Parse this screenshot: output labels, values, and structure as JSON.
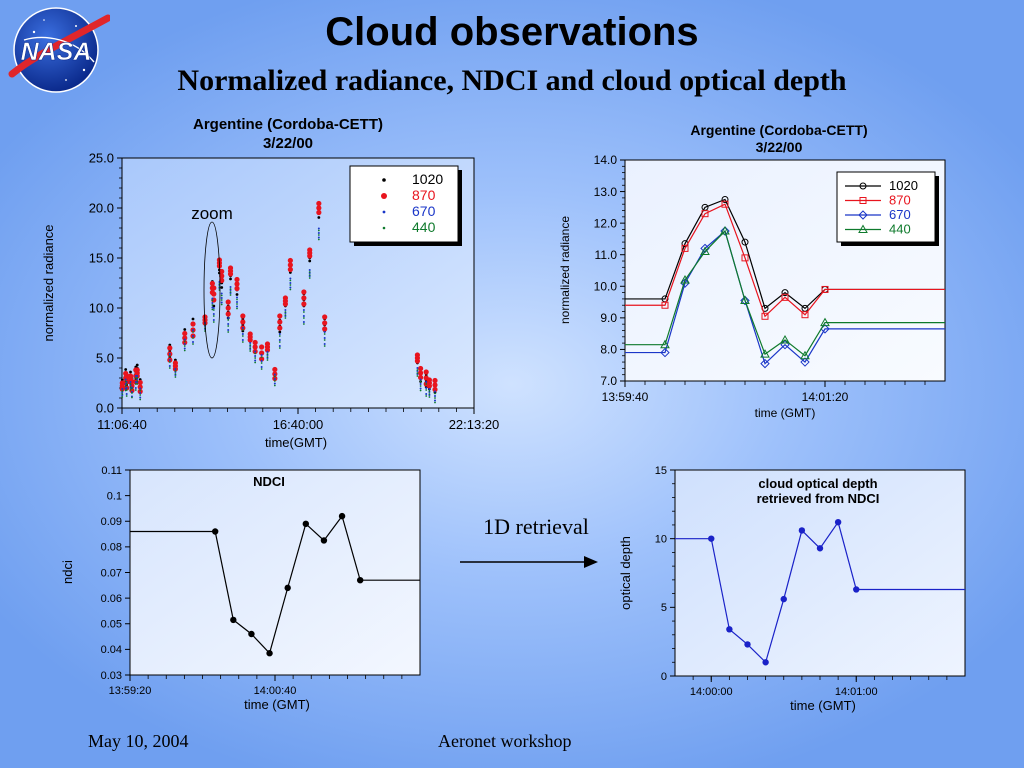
{
  "slide": {
    "title": "Cloud observations",
    "subtitle": "Normalized radiance, NDCI and cloud optical depth",
    "footer_left": "May 10, 2004",
    "footer_center": "Aeronet workshop",
    "logo_text": "NASA",
    "arrow_label": "1D retrieval"
  },
  "chart_data": [
    {
      "id": "radiance_full",
      "type": "scatter",
      "title": "Argentine (Cordoba-CETT)",
      "subtitle": "3/22/00",
      "xlabel": "time(GMT)",
      "ylabel": "normalized radiance",
      "xlim": [
        0,
        40000
      ],
      "ylim": [
        0,
        25
      ],
      "yticks": [
        0,
        5,
        10,
        15,
        20,
        25
      ],
      "yticklabels": [
        "0.0",
        "5.0",
        "10.0",
        "15.0",
        "20.0",
        "25.0"
      ],
      "xticks": [
        0,
        20000,
        40000
      ],
      "xticklabels": [
        "11:06:40",
        "16:40:00",
        "22:13:20"
      ],
      "annotation": "zoom",
      "legend_position": "top-right",
      "series": [
        {
          "name": "1020",
          "color": "#000000",
          "x": [
            100,
            350,
            600,
            900,
            1200,
            1500,
            1800,
            2000,
            5500,
            6000,
            7200,
            8000,
            9500,
            10200,
            10500,
            11000,
            11400,
            12000,
            12400,
            13000,
            13800,
            14500,
            15200,
            15800,
            16600,
            17300,
            18000,
            18500,
            19200,
            20600,
            21400,
            22300,
            23100,
            33500,
            34000,
            34500,
            35000,
            35500
          ],
          "y": [
            2.5,
            3.4,
            2.9,
            3.3,
            2.5,
            3.5,
            4.0,
            2.4,
            5.7,
            4.5,
            7.4,
            8.3,
            8.7,
            12.2,
            10.8,
            13.8,
            12.5,
            9.6,
            13.2,
            11.8,
            8.3,
            7.0,
            6.0,
            5.5,
            6.2,
            3.5,
            8.2,
            10.5,
            14.0,
            10.8,
            15.0,
            19.5,
            8.3,
            4.8,
            3.1,
            2.7,
            2.2,
            2.0
          ]
        },
        {
          "name": "870",
          "color": "#e8141e",
          "x": [
            100,
            350,
            600,
            900,
            1200,
            1500,
            1800,
            2000,
            5500,
            6000,
            7200,
            8000,
            9500,
            10200,
            10500,
            11000,
            11400,
            12000,
            12400,
            13000,
            13800,
            14500,
            15200,
            15800,
            16600,
            17300,
            18000,
            18500,
            19200,
            20600,
            21400,
            22300,
            23100,
            33500,
            34000,
            34500,
            35000,
            35500
          ],
          "y": [
            2.2,
            3.0,
            2.6,
            2.9,
            2.2,
            3.2,
            3.5,
            2.1,
            5.4,
            4.2,
            7.0,
            7.8,
            8.8,
            12.0,
            11.4,
            14.5,
            13.2,
            10.0,
            13.7,
            12.4,
            8.6,
            7.1,
            6.1,
            5.5,
            6.1,
            3.4,
            8.6,
            10.7,
            14.3,
            11.0,
            15.5,
            20.0,
            8.5,
            5.0,
            3.5,
            3.0,
            2.5,
            2.3
          ]
        },
        {
          "name": "670",
          "color": "#1a36c8",
          "x": [
            100,
            350,
            600,
            900,
            1200,
            1500,
            1800,
            2000,
            5500,
            6000,
            7200,
            8000,
            9500,
            10200,
            10500,
            11000,
            11400,
            12000,
            12400,
            13000,
            13800,
            14500,
            15200,
            15800,
            16600,
            17300,
            18000,
            18500,
            19200,
            20600,
            21400,
            22300,
            23100,
            33500,
            34000,
            34500,
            35000,
            35500
          ],
          "y": [
            1.6,
            2.4,
            2.0,
            2.3,
            1.6,
            2.6,
            2.9,
            1.5,
            4.8,
            3.6,
            6.4,
            7.2,
            8.2,
            10.5,
            9.4,
            12.3,
            11.0,
            8.4,
            11.8,
            10.6,
            7.4,
            6.2,
            5.2,
            4.7,
            5.3,
            2.9,
            6.8,
            9.5,
            12.5,
            9.2,
            13.5,
            17.5,
            7.0,
            3.7,
            2.4,
            2.0,
            1.6,
            1.2
          ]
        },
        {
          "name": "440",
          "color": "#0e7a2c",
          "x": [
            100,
            350,
            600,
            900,
            1200,
            1500,
            1800,
            2000,
            5500,
            6000,
            7200,
            8000,
            9500,
            10200,
            10500,
            11000,
            11400,
            12000,
            12400,
            13000,
            13800,
            14500,
            15200,
            15800,
            16600,
            17300,
            18000,
            18500,
            19200,
            20600,
            21400,
            22300,
            23100,
            33500,
            34000,
            34500,
            35000,
            35500
          ],
          "y": [
            1.4,
            2.2,
            1.8,
            2.1,
            1.5,
            2.4,
            2.7,
            1.3,
            4.6,
            3.4,
            6.2,
            7.0,
            8.0,
            10.3,
            9.2,
            12.1,
            10.8,
            8.2,
            11.6,
            10.4,
            7.2,
            6.0,
            5.0,
            4.5,
            5.1,
            2.7,
            6.6,
            9.3,
            12.3,
            9.0,
            13.3,
            17.3,
            6.8,
            3.5,
            2.2,
            1.8,
            1.4,
            1.0
          ]
        }
      ]
    },
    {
      "id": "radiance_zoom",
      "type": "line",
      "title": "Argentine (Cordoba-CETT)",
      "subtitle": "3/22/00",
      "xlabel": "time (GMT)",
      "ylabel": "normalized radiance",
      "xlim": [
        0,
        160
      ],
      "ylim": [
        7,
        14
      ],
      "yticks": [
        7,
        8,
        9,
        10,
        11,
        12,
        13,
        14
      ],
      "yticklabels": [
        "7.0",
        "8.0",
        "9.0",
        "10.0",
        "11.0",
        "12.0",
        "13.0",
        "14.0"
      ],
      "xticks": [
        0,
        100
      ],
      "xticklabels": [
        "13:59:40",
        "14:01:20"
      ],
      "legend_position": "top-right",
      "x_points": [
        0,
        20,
        30,
        40,
        50,
        60,
        70,
        80,
        90,
        100,
        110,
        120,
        130,
        140,
        150,
        160
      ],
      "marker_indices": [
        1,
        2,
        3,
        4,
        5,
        6,
        7,
        8,
        9
      ],
      "series": [
        {
          "name": "1020",
          "color": "#000000",
          "marker": "circle",
          "y": [
            9.6,
            9.6,
            11.35,
            12.5,
            12.75,
            11.4,
            9.3,
            9.8,
            9.3,
            9.9,
            9.9,
            9.9,
            9.9,
            9.9,
            9.9,
            9.9
          ]
        },
        {
          "name": "870",
          "color": "#e8141e",
          "marker": "square",
          "y": [
            9.4,
            9.4,
            11.2,
            12.3,
            12.6,
            10.9,
            9.05,
            9.65,
            9.1,
            9.9,
            9.9,
            9.9,
            9.9,
            9.9,
            9.9,
            9.9
          ]
        },
        {
          "name": "670",
          "color": "#1a36c8",
          "marker": "diamond",
          "y": [
            7.9,
            7.9,
            10.1,
            11.2,
            11.75,
            9.55,
            7.55,
            8.15,
            7.6,
            8.65,
            8.65,
            8.65,
            8.65,
            8.65,
            8.65,
            8.65
          ]
        },
        {
          "name": "440",
          "color": "#0e7a2c",
          "marker": "triangle",
          "y": [
            8.15,
            8.15,
            10.2,
            11.1,
            11.75,
            9.55,
            7.85,
            8.3,
            7.8,
            8.85,
            8.85,
            8.85,
            8.85,
            8.85,
            8.85,
            8.85
          ]
        }
      ]
    },
    {
      "id": "ndci",
      "type": "line",
      "title": "NDCI",
      "xlabel": "time (GMT)",
      "ylabel": "ndci",
      "xlim": [
        0,
        160
      ],
      "ylim": [
        0.03,
        0.11
      ],
      "yticks": [
        0.03,
        0.04,
        0.05,
        0.06,
        0.07,
        0.08,
        0.09,
        0.1,
        0.11
      ],
      "yticklabels": [
        "0.03",
        "0.04",
        "0.05",
        "0.06",
        "0.07",
        "0.08",
        "0.09",
        "0.1",
        "0.11"
      ],
      "xticks": [
        0,
        80
      ],
      "xticklabels": [
        "13:59:20",
        "14:00:40"
      ],
      "color": "#000000",
      "x": [
        0,
        47,
        57,
        67,
        77,
        87,
        97,
        107,
        117,
        127,
        160
      ],
      "y": [
        0.086,
        0.086,
        0.0515,
        0.046,
        0.0385,
        0.064,
        0.089,
        0.0825,
        0.092,
        0.067,
        0.067
      ],
      "marker_indices": [
        1,
        2,
        3,
        4,
        5,
        6,
        7,
        8,
        9
      ]
    },
    {
      "id": "optical_depth",
      "type": "line",
      "title": "cloud optical depth",
      "subtitle": "retrieved from NDCI",
      "xlabel": "time (GMT)",
      "ylabel": "optical depth",
      "xlim": [
        0,
        160
      ],
      "ylim": [
        0,
        15
      ],
      "yticks": [
        0,
        5,
        10,
        15
      ],
      "yticklabels": [
        "0",
        "5",
        "10",
        "15"
      ],
      "xticks": [
        20,
        100
      ],
      "xticklabels": [
        "14:00:00",
        "14:01:00"
      ],
      "color": "#1a22c8",
      "x": [
        0,
        20,
        30,
        40,
        50,
        60,
        70,
        80,
        90,
        100,
        110,
        120,
        130,
        140,
        150,
        160
      ],
      "y": [
        10.0,
        10.0,
        3.4,
        2.3,
        1.0,
        5.6,
        10.6,
        9.3,
        11.2,
        6.3,
        6.3,
        6.3,
        6.3,
        6.3,
        6.3,
        6.3
      ],
      "marker_indices": [
        1,
        2,
        3,
        4,
        5,
        6,
        7,
        8,
        9
      ]
    }
  ]
}
